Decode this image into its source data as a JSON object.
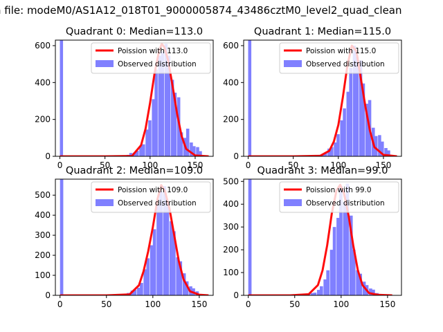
{
  "figure_title": "n file: modeM0/AS1A12_018T01_9000005874_43486cztM0_level2_quad_clean",
  "chart_data": [
    {
      "type": "bar",
      "title": "Quadrant 0: Median=113.0",
      "xlim": [
        -5,
        170
      ],
      "ylim": [
        0,
        630
      ],
      "xticks": [
        0,
        50,
        100,
        150
      ],
      "yticks": [
        0,
        200,
        400,
        600
      ],
      "legend_placement": "upper right",
      "bin_width": 3.5,
      "histogram": {
        "name": "Observed distribution",
        "color": "#8080ff",
        "x": [
          0,
          60,
          67,
          74,
          77,
          81,
          84,
          88,
          91,
          95,
          98,
          102,
          105,
          109,
          112,
          116,
          119,
          123,
          126,
          130,
          133,
          137,
          140,
          144,
          147,
          151,
          154
        ],
        "values": [
          630,
          3,
          4,
          8,
          18,
          20,
          30,
          55,
          65,
          145,
          195,
          310,
          470,
          545,
          570,
          610,
          545,
          415,
          345,
          320,
          130,
          100,
          150,
          75,
          55,
          50,
          28
        ]
      },
      "curve": {
        "name": "Poission with 113.0",
        "color": "#ff0000",
        "lambda": 113.0,
        "scale": 609,
        "x": [
          0,
          50,
          80,
          90,
          95,
          100,
          105,
          110,
          113,
          116,
          120,
          125,
          130,
          135,
          140,
          150,
          165
        ],
        "values": [
          0,
          0,
          2,
          60,
          150,
          290,
          450,
          570,
          610,
          590,
          520,
          380,
          230,
          110,
          40,
          5,
          0
        ]
      }
    },
    {
      "type": "bar",
      "title": "Quadrant 1: Median=115.0",
      "xlim": [
        -5,
        170
      ],
      "ylim": [
        0,
        630
      ],
      "xticks": [
        0,
        50,
        100,
        150
      ],
      "yticks": [
        0,
        200,
        400,
        600
      ],
      "legend_placement": "upper right",
      "bin_width": 3.5,
      "histogram": {
        "name": "Observed distribution",
        "color": "#8080ff",
        "x": [
          0,
          67,
          74,
          77,
          81,
          84,
          88,
          91,
          95,
          98,
          102,
          105,
          109,
          112,
          116,
          119,
          123,
          126,
          130,
          133,
          137,
          140,
          144,
          147,
          151,
          154
        ],
        "values": [
          630,
          4,
          5,
          8,
          12,
          20,
          42,
          50,
          75,
          120,
          195,
          260,
          350,
          480,
          600,
          540,
          520,
          395,
          285,
          305,
          155,
          110,
          115,
          80,
          45,
          32
        ]
      },
      "curve": {
        "name": "Poission with 115.0",
        "color": "#ff0000",
        "lambda": 115.0,
        "scale": 604,
        "x": [
          0,
          50,
          80,
          90,
          95,
          100,
          105,
          110,
          115,
          120,
          125,
          130,
          135,
          140,
          150,
          165
        ],
        "values": [
          0,
          0,
          3,
          30,
          80,
          170,
          320,
          490,
          600,
          570,
          420,
          270,
          140,
          50,
          8,
          0
        ]
      }
    },
    {
      "type": "bar",
      "title": "Quadrant 2: Median=109.0",
      "xlim": [
        -5,
        165
      ],
      "ylim": [
        0,
        580
      ],
      "xticks": [
        0,
        50,
        100,
        150
      ],
      "yticks": [
        0,
        100,
        200,
        300,
        400,
        500
      ],
      "legend_placement": "upper right",
      "bin_width": 3.5,
      "histogram": {
        "name": "Observed distribution",
        "color": "#8080ff",
        "x": [
          0,
          65,
          69,
          72,
          76,
          79,
          83,
          86,
          90,
          93,
          97,
          100,
          104,
          107,
          111,
          114,
          118,
          121,
          125,
          128,
          132,
          135,
          139,
          142,
          146
        ],
        "values": [
          580,
          4,
          8,
          12,
          24,
          28,
          38,
          62,
          130,
          185,
          250,
          330,
          450,
          520,
          545,
          470,
          370,
          320,
          190,
          170,
          110,
          70,
          45,
          35,
          20
        ]
      },
      "curve": {
        "name": "Poission with 109.0",
        "color": "#ff0000",
        "lambda": 109.0,
        "scale": 550,
        "x": [
          0,
          50,
          75,
          85,
          90,
          95,
          100,
          105,
          109,
          113,
          118,
          123,
          128,
          133,
          140,
          150,
          160
        ],
        "values": [
          0,
          0,
          5,
          50,
          120,
          220,
          340,
          480,
          550,
          520,
          430,
          300,
          170,
          80,
          20,
          3,
          0
        ]
      }
    },
    {
      "type": "bar",
      "title": "Quadrant 3: Median=99.0",
      "xlim": [
        -5,
        165
      ],
      "ylim": [
        0,
        510
      ],
      "xticks": [
        0,
        50,
        100,
        150
      ],
      "yticks": [
        0,
        100,
        200,
        300,
        400,
        500
      ],
      "legend_placement": "upper right",
      "bin_width": 3.5,
      "histogram": {
        "name": "Observed distribution",
        "color": "#8080ff",
        "x": [
          0,
          60,
          63,
          67,
          70,
          74,
          77,
          81,
          84,
          88,
          91,
          95,
          98,
          102,
          105,
          109,
          112,
          116,
          119,
          123,
          126,
          130,
          133,
          137
        ],
        "values": [
          510,
          3,
          6,
          10,
          12,
          24,
          40,
          70,
          110,
          200,
          300,
          340,
          480,
          410,
          490,
          350,
          200,
          110,
          95,
          60,
          45,
          30,
          25,
          10
        ]
      },
      "curve": {
        "name": "Poission with 99.0",
        "color": "#ff0000",
        "lambda": 99.0,
        "scale": 485,
        "x": [
          0,
          45,
          65,
          75,
          80,
          85,
          90,
          95,
          99,
          103,
          108,
          113,
          118,
          123,
          130,
          140,
          155
        ],
        "values": [
          0,
          0,
          5,
          45,
          110,
          220,
          360,
          460,
          485,
          450,
          350,
          220,
          110,
          45,
          10,
          2,
          0
        ]
      }
    }
  ]
}
